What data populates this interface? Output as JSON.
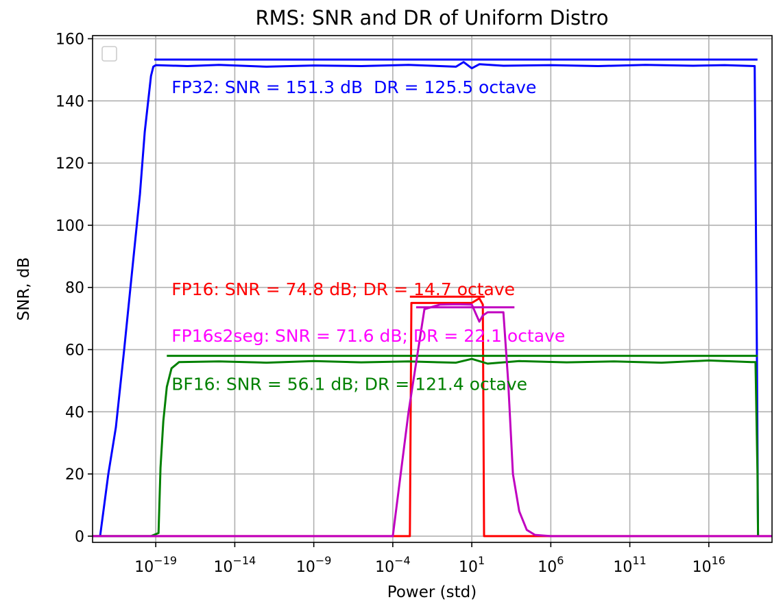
{
  "chart_data": {
    "type": "line",
    "title": "RMS: SNR and DR of Uniform Distro",
    "xlabel": "Power (std)",
    "ylabel": "SNR, dB",
    "x_scale": "log",
    "xlim": [
      1e-23,
      1e+20
    ],
    "ylim": [
      -2,
      161
    ],
    "x_ticks": [
      {
        "value": 1e-19,
        "base": "10",
        "exp": "−19"
      },
      {
        "value": 1e-14,
        "base": "10",
        "exp": "−14"
      },
      {
        "value": 1e-09,
        "base": "10",
        "exp": "−9"
      },
      {
        "value": 0.0001,
        "base": "10",
        "exp": "−4"
      },
      {
        "value": 10,
        "base": "10",
        "exp": "1"
      },
      {
        "value": 1000000.0,
        "base": "10",
        "exp": "6"
      },
      {
        "value": 100000000000.0,
        "base": "10",
        "exp": "11"
      },
      {
        "value": 1e+16,
        "base": "10",
        "exp": "16"
      }
    ],
    "y_ticks": [
      {
        "value": 0,
        "label": "0"
      },
      {
        "value": 20,
        "label": "20"
      },
      {
        "value": 40,
        "label": "40"
      },
      {
        "value": 60,
        "label": "60"
      },
      {
        "value": 80,
        "label": "80"
      },
      {
        "value": 100,
        "label": "100"
      },
      {
        "value": 120,
        "label": "120"
      },
      {
        "value": 140,
        "label": "140"
      },
      {
        "value": 160,
        "label": "160"
      }
    ],
    "grid": true,
    "legend": "top-left, empty box",
    "series": [
      {
        "color": "#0000ff",
        "x": [
          3e-23,
          1e-22,
          3e-22,
          1e-21,
          3e-21,
          1e-20,
          2e-20,
          5e-20,
          7e-20,
          1e-19,
          1e-17,
          1e-15,
          1e-12,
          1e-09,
          1e-06,
          0.001,
          1,
          3,
          10,
          30,
          1000.0,
          1000000.0,
          1000000000.0,
          1000000000000.0,
          1000000000000000.0,
          1e+17,
          8e+18,
          1.1e+19,
          1.3e+19
        ],
        "y": [
          0,
          20,
          35,
          60,
          84,
          110,
          130,
          148,
          151,
          151.5,
          151.2,
          151.6,
          151.0,
          151.4,
          151.2,
          151.6,
          151.0,
          152.5,
          150.5,
          151.8,
          151.3,
          151.5,
          151.2,
          151.6,
          151.3,
          151.5,
          151.2,
          60,
          0
        ]
      },
      {
        "color": "#0000ff",
        "x": [
          8e-20,
          1.2e+19
        ],
        "y": [
          153.3,
          153.3
        ]
      },
      {
        "color": "#ff0000",
        "x": [
          1e-23,
          0.0001,
          0.0012,
          0.0015,
          1,
          3,
          10,
          30,
          50,
          60,
          1000000.0,
          1000000000000.0,
          1e+20
        ],
        "y": [
          0,
          0,
          0,
          75,
          75,
          75,
          75,
          76.5,
          74.5,
          0,
          0,
          0,
          0
        ]
      },
      {
        "color": "#ff0000",
        "x": [
          0.0012,
          65
        ],
        "y": [
          77,
          77
        ]
      },
      {
        "color": "#008000",
        "x": [
          1e-23,
          5e-20,
          1.5e-19,
          2e-19,
          3e-19,
          5e-19,
          1e-18,
          3e-18,
          1e-15,
          1e-12,
          1e-09,
          1e-06,
          0.001,
          1,
          10,
          100,
          10000.0,
          10000000.0,
          10000000000.0,
          10000000000000.0,
          1e+16,
          5e+18,
          9e+18,
          1.2e+19,
          1.3e+19
        ],
        "y": [
          0,
          0,
          1,
          22,
          37,
          48,
          54,
          56,
          56.2,
          55.8,
          56.3,
          55.9,
          56.2,
          55.8,
          57,
          55.5,
          56.3,
          55.9,
          56.2,
          55.8,
          56.5,
          56,
          56,
          20,
          0
        ]
      },
      {
        "color": "#008000",
        "x": [
          5e-19,
          1.2e+19
        ],
        "y": [
          58,
          58
        ]
      },
      {
        "color": "#c000c0",
        "x": [
          1e-23,
          1e-06,
          0.0001,
          0.001,
          0.01,
          0.1,
          1,
          10,
          20,
          30,
          50,
          100,
          200,
          1000.0,
          2000.0,
          4000.0,
          10000.0,
          30000.0,
          100000.0,
          1000000.0,
          1000000000000.0,
          1e+20
        ],
        "y": [
          0,
          0,
          0,
          40,
          73,
          74.5,
          74.6,
          74.5,
          71,
          69,
          71,
          72,
          72,
          72,
          50,
          20,
          8,
          2,
          0.4,
          0,
          0,
          0
        ]
      },
      {
        "color": "#c000c0",
        "x": [
          0.003,
          5000.0
        ],
        "y": [
          73.6,
          73.6
        ]
      }
    ],
    "annotations": [
      {
        "text": "FP32: SNR = 151.3 dB  DR = 125.5 octave",
        "color": "#0000ff",
        "x": 1e-18,
        "y": 144.5
      },
      {
        "text": "FP16: SNR = 74.8 dB; DR = 14.7 octave",
        "color": "#ff0000",
        "x": 1e-18,
        "y": 79.5
      },
      {
        "text": "FP16s2seg: SNR = 71.6 dB; DR = 22.1 octave",
        "color": "#ff00ff",
        "x": 1e-18,
        "y": 64.5
      },
      {
        "text": "BF16: SNR = 56.1 dB; DR = 121.4 octave",
        "color": "#008000",
        "x": 1e-18,
        "y": 49
      }
    ]
  }
}
